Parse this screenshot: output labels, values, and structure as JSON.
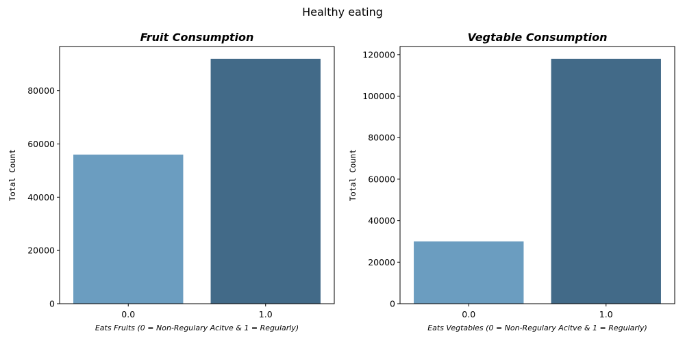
{
  "figure": {
    "title": "Healthy eating"
  },
  "chart_data": [
    {
      "type": "bar",
      "title": "Fruit Consumption",
      "xlabel": "Eats Fruits (0 = Non-Regulary Acitve & 1 = Regularly)",
      "ylabel": "Total Count",
      "categories": [
        "0.0",
        "1.0"
      ],
      "values": [
        56000,
        92000
      ],
      "colors": [
        "#6b9dc0",
        "#426a88"
      ],
      "ylim": [
        0,
        96600
      ],
      "yticks": [
        0,
        20000,
        40000,
        60000,
        80000
      ],
      "grid": false
    },
    {
      "type": "bar",
      "title": "Vegtable Consumption",
      "xlabel": "Eats Vegtables (0 = Non-Regulary Acitve & 1 = Regularly)",
      "ylabel": "Total Count",
      "categories": [
        "0.0",
        "1.0"
      ],
      "values": [
        30000,
        118000
      ],
      "colors": [
        "#6b9dc0",
        "#426a88"
      ],
      "ylim": [
        0,
        123900
      ],
      "yticks": [
        0,
        20000,
        40000,
        60000,
        80000,
        100000,
        120000
      ],
      "grid": false
    }
  ]
}
